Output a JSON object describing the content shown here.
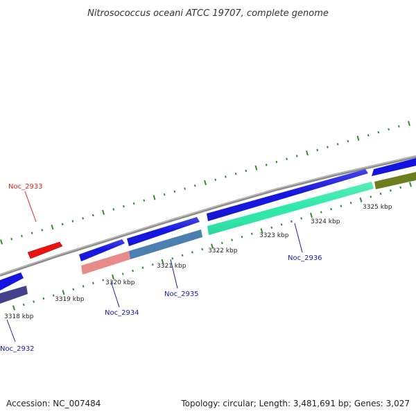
{
  "title": "Nitrosococcus oceani ATCC 19707, complete genome",
  "footer": {
    "accession": "Accession: NC_007484",
    "summary": "Topology: circular; Length: 3,481,691 bp; Genes: 3,027"
  },
  "colors": {
    "backbone": "#8c8c8c",
    "tick_green": "#2e8b2e",
    "label_red": "#dd2222",
    "label_blue": "#1a1aa6",
    "gene_blue": "#1414e0",
    "gene_red": "#ee1111",
    "gene_pink": "#e88a8a",
    "gene_steel": "#4a7fb0",
    "gene_mint": "#2ee8a8",
    "gene_olive": "#6b7f1e",
    "gene_navy": "#45408a"
  },
  "scale_labels": [
    "3318 kbp",
    "3319 kbp",
    "3320 kbp",
    "3321 kbp",
    "3322 kbp",
    "3323 kbp",
    "3324 kbp",
    "3325 kbp"
  ],
  "gene_labels": [
    {
      "name": "Noc_2933",
      "color": "red"
    },
    {
      "name": "Noc_2932",
      "color": "blue"
    },
    {
      "name": "Noc_2934",
      "color": "blue"
    },
    {
      "name": "Noc_2935",
      "color": "blue"
    },
    {
      "name": "Noc_2936",
      "color": "blue"
    }
  ]
}
